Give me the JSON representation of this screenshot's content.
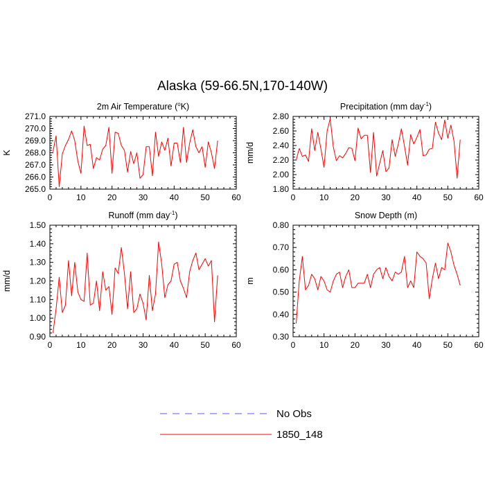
{
  "figure_title": "Alaska (59-66.5N,170-140W)",
  "chart_data": [
    {
      "type": "line",
      "title": "2m Air Temperature (°K)",
      "title_parts": [
        "2m Air Temperature (",
        "o",
        "K)"
      ],
      "ylabel": "K",
      "xlim": [
        0,
        60
      ],
      "ylim": [
        265,
        271
      ],
      "xticks": [
        0,
        10,
        20,
        30,
        40,
        50,
        60
      ],
      "yticks": [
        265.0,
        266.0,
        267.0,
        268.0,
        269.0,
        270.0,
        271.0
      ],
      "ytick_decimals": 1,
      "series": [
        {
          "name": "1850_148",
          "color": "#ff0000",
          "x": [
            1,
            2,
            3,
            4,
            5,
            6,
            7,
            8,
            9,
            10,
            11,
            12,
            13,
            14,
            15,
            16,
            17,
            18,
            19,
            20,
            21,
            22,
            23,
            24,
            25,
            26,
            27,
            28,
            29,
            30,
            31,
            32,
            33,
            34,
            35,
            36,
            37,
            38,
            39,
            40,
            41,
            42,
            43,
            44,
            45,
            46,
            47,
            48,
            49,
            50,
            51,
            52,
            53,
            54
          ],
          "values": [
            268.1,
            269.4,
            265.2,
            267.9,
            268.6,
            269.1,
            269.8,
            269.0,
            267.3,
            266.3,
            270.2,
            268.6,
            268.7,
            266.7,
            267.6,
            267.4,
            268.3,
            268.6,
            270.1,
            266.3,
            269.7,
            269.6,
            268.6,
            268.2,
            266.4,
            268.1,
            267.1,
            268.0,
            265.9,
            266.2,
            268.5,
            268.5,
            266.1,
            269.7,
            267.7,
            268.9,
            268.2,
            269.2,
            266.9,
            268.8,
            268.8,
            267.2,
            270.1,
            267.2,
            268.8,
            269.9,
            268.5,
            268.0,
            268.5,
            266.8,
            268.9,
            268.0,
            266.7,
            269.0
          ]
        }
      ]
    },
    {
      "type": "line",
      "title": "Precipitation (mm day-1)",
      "title_parts": [
        "Precipitation (mm day",
        "-1",
        ")"
      ],
      "ylabel": "mm/d",
      "xlim": [
        0,
        60
      ],
      "ylim": [
        1.8,
        2.8
      ],
      "xticks": [
        0,
        10,
        20,
        30,
        40,
        50,
        60
      ],
      "yticks": [
        1.8,
        2.0,
        2.2,
        2.4,
        2.6,
        2.8
      ],
      "ytick_decimals": 2,
      "series": [
        {
          "name": "1850_148",
          "color": "#ff0000",
          "x": [
            1,
            2,
            3,
            4,
            5,
            6,
            7,
            8,
            9,
            10,
            11,
            12,
            13,
            14,
            15,
            16,
            17,
            18,
            19,
            20,
            21,
            22,
            23,
            24,
            25,
            26,
            27,
            28,
            29,
            30,
            31,
            32,
            33,
            34,
            35,
            36,
            37,
            38,
            39,
            40,
            41,
            42,
            43,
            44,
            45,
            46,
            47,
            48,
            49,
            50,
            51,
            52,
            53,
            54
          ],
          "values": [
            2.2,
            2.36,
            2.25,
            2.27,
            2.18,
            2.63,
            2.33,
            2.58,
            2.35,
            2.1,
            2.6,
            2.77,
            2.38,
            2.19,
            2.26,
            2.23,
            2.29,
            2.37,
            2.36,
            2.19,
            2.64,
            2.49,
            2.54,
            2.54,
            2.03,
            2.58,
            1.98,
            2.16,
            2.33,
            2.04,
            2.09,
            2.48,
            2.25,
            2.42,
            2.63,
            2.39,
            2.13,
            2.55,
            2.42,
            2.51,
            2.62,
            2.26,
            2.27,
            2.35,
            2.36,
            2.72,
            2.57,
            2.48,
            2.75,
            2.5,
            2.68,
            2.46,
            1.95,
            2.48
          ]
        }
      ]
    },
    {
      "type": "line",
      "title": "Runoff (mm day-1)",
      "title_parts": [
        "Runoff (mm day",
        "-1",
        ")"
      ],
      "ylabel": "mm/d",
      "xlim": [
        0,
        60
      ],
      "ylim": [
        0.9,
        1.5
      ],
      "xticks": [
        0,
        10,
        20,
        30,
        40,
        50,
        60
      ],
      "yticks": [
        0.9,
        1.0,
        1.1,
        1.2,
        1.3,
        1.4,
        1.5
      ],
      "ytick_decimals": 2,
      "series": [
        {
          "name": "1850_148",
          "color": "#ff0000",
          "x": [
            1,
            2,
            3,
            4,
            5,
            6,
            7,
            8,
            9,
            10,
            11,
            12,
            13,
            14,
            15,
            16,
            17,
            18,
            19,
            20,
            21,
            22,
            23,
            24,
            25,
            26,
            27,
            28,
            29,
            30,
            31,
            32,
            33,
            34,
            35,
            36,
            37,
            38,
            39,
            40,
            41,
            42,
            43,
            44,
            45,
            46,
            47,
            48,
            49,
            50,
            51,
            52,
            53,
            54
          ],
          "values": [
            0.92,
            1.05,
            1.22,
            1.03,
            1.07,
            1.31,
            1.12,
            1.3,
            1.14,
            1.1,
            1.09,
            1.35,
            1.07,
            1.08,
            1.2,
            1.04,
            1.25,
            1.15,
            1.17,
            1.02,
            1.27,
            1.24,
            1.38,
            1.24,
            1.05,
            1.25,
            1.03,
            1.05,
            1.13,
            1.08,
            0.99,
            1.23,
            1.04,
            1.13,
            1.41,
            1.29,
            1.11,
            1.18,
            1.2,
            1.29,
            1.3,
            1.2,
            1.16,
            1.11,
            1.25,
            1.31,
            1.35,
            1.26,
            1.29,
            1.32,
            1.28,
            1.31,
            0.98,
            1.23
          ]
        }
      ]
    },
    {
      "type": "line",
      "title": "Snow Depth (m)",
      "title_parts": [
        "Snow Depth (m)"
      ],
      "ylabel": "m",
      "xlim": [
        0,
        60
      ],
      "ylim": [
        0.3,
        0.8
      ],
      "xticks": [
        0,
        10,
        20,
        30,
        40,
        50,
        60
      ],
      "yticks": [
        0.3,
        0.4,
        0.5,
        0.6,
        0.7,
        0.8
      ],
      "ytick_decimals": 2,
      "series": [
        {
          "name": "1850_148",
          "color": "#ff0000",
          "x": [
            1,
            2,
            3,
            4,
            5,
            6,
            7,
            8,
            9,
            10,
            11,
            12,
            13,
            14,
            15,
            16,
            17,
            18,
            19,
            20,
            21,
            22,
            23,
            24,
            25,
            26,
            27,
            28,
            29,
            30,
            31,
            32,
            33,
            34,
            35,
            36,
            37,
            38,
            39,
            40,
            41,
            42,
            43,
            44,
            45,
            46,
            47,
            48,
            49,
            50,
            51,
            52,
            53,
            54
          ],
          "values": [
            0.36,
            0.55,
            0.66,
            0.51,
            0.53,
            0.58,
            0.56,
            0.51,
            0.57,
            0.55,
            0.51,
            0.5,
            0.55,
            0.58,
            0.59,
            0.52,
            0.57,
            0.6,
            0.52,
            0.52,
            0.54,
            0.54,
            0.54,
            0.58,
            0.52,
            0.58,
            0.6,
            0.61,
            0.56,
            0.61,
            0.57,
            0.55,
            0.59,
            0.58,
            0.59,
            0.66,
            0.52,
            0.55,
            0.52,
            0.68,
            0.66,
            0.65,
            0.63,
            0.47,
            0.56,
            0.63,
            0.56,
            0.61,
            0.6,
            0.72,
            0.68,
            0.62,
            0.58,
            0.53
          ]
        }
      ]
    }
  ],
  "legend": {
    "placement": "bottom-center",
    "items": [
      {
        "label": "No Obs",
        "color": "#5a5aff",
        "style": "dashed"
      },
      {
        "label": "1850_148",
        "color": "#ff0000",
        "style": "solid"
      }
    ]
  }
}
